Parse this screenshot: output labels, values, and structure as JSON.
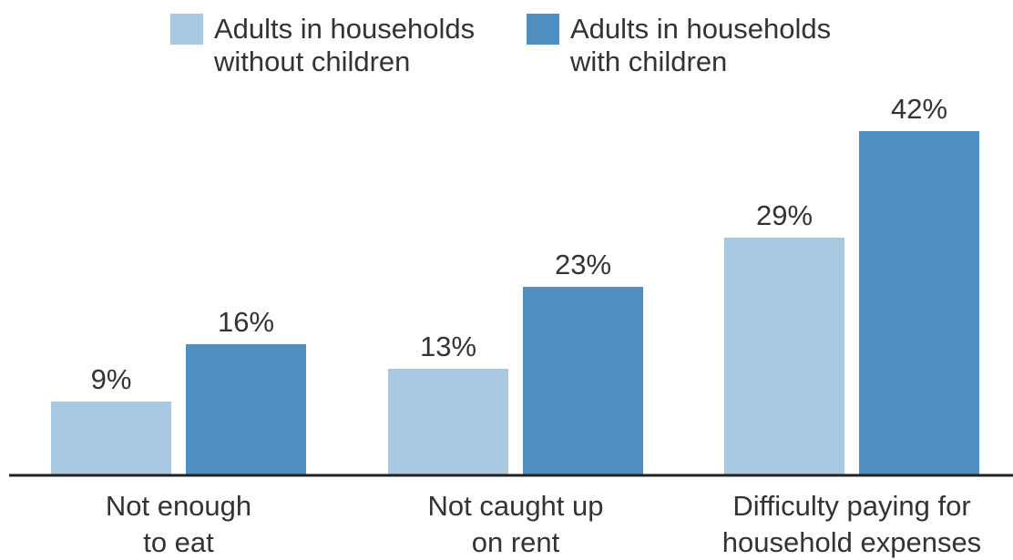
{
  "chart_data": {
    "type": "bar",
    "categories": [
      [
        "Not enough",
        "to eat"
      ],
      [
        "Not caught up",
        "on rent"
      ],
      [
        "Difficulty paying for",
        "household expenses"
      ]
    ],
    "series": [
      {
        "name": [
          "Adults in households",
          "without children"
        ],
        "values": [
          9,
          13,
          29
        ],
        "value_labels": [
          "9%",
          "13%",
          "29%"
        ],
        "color": "#a9c8e2"
      },
      {
        "name": [
          "Adults in households",
          "with children"
        ],
        "values": [
          16,
          23,
          42
        ],
        "value_labels": [
          "16%",
          "23%",
          "42%"
        ],
        "color": "#4f8fc2"
      }
    ],
    "ylim": [
      0,
      42
    ],
    "grid": false,
    "legend_position": "top"
  }
}
